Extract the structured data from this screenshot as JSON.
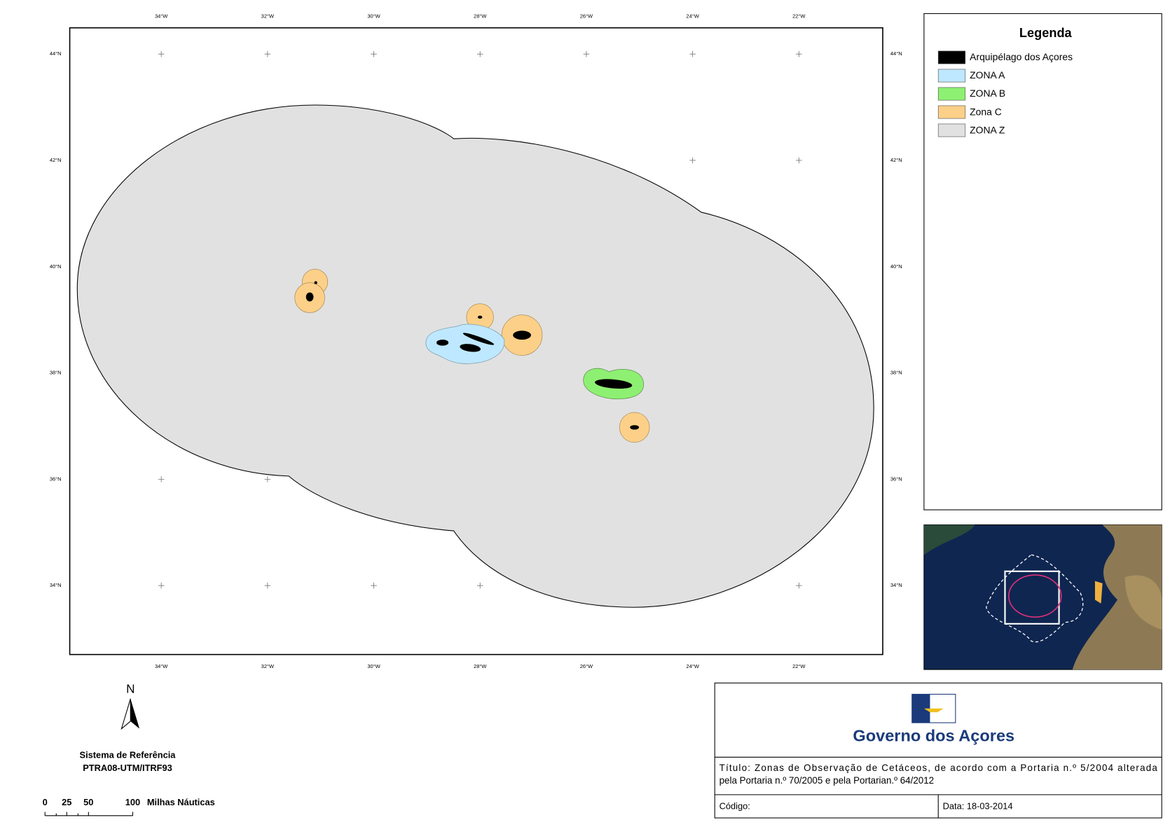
{
  "map": {
    "lon_labels": [
      "34°W",
      "32°W",
      "30°W",
      "28°W",
      "26°W",
      "24°W",
      "22°W"
    ],
    "lat_labels": [
      "44°N",
      "42°N",
      "40°N",
      "38°N",
      "36°N",
      "34°N"
    ]
  },
  "legend": {
    "title": "Legenda",
    "items": [
      {
        "label": "Arquipélago dos Açores",
        "color": "#000000"
      },
      {
        "label": "ZONA A",
        "color": "#bee8ff"
      },
      {
        "label": "ZONA B",
        "color": "#8ef072"
      },
      {
        "label": "Zona C",
        "color": "#fcd088"
      },
      {
        "label": "ZONA Z",
        "color": "#e1e1e1"
      }
    ]
  },
  "north": "N",
  "reference": {
    "title": "Sistema de Referência",
    "value": "PTRA08-UTM/ITRF93"
  },
  "scale": {
    "ticks": [
      "0",
      "25",
      "50",
      "100"
    ],
    "unit": "Milhas Náuticas"
  },
  "title_block": {
    "logo": "Governo dos Açores",
    "title_lines": [
      "Título: Zonas de Observação de Cetáceos, de acordo com a Portaria n.º 5/2004 alterada",
      "pela Portaria n.º 70/2005  e pela Portarian.º 64/2012"
    ],
    "code": "Código:",
    "date": "Data: 18-03-2014"
  }
}
